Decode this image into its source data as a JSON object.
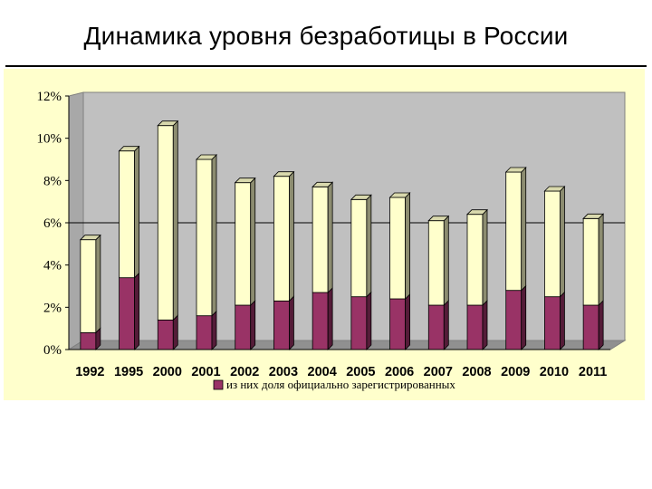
{
  "slide": {
    "title": "Динамика уровня безработицы в России"
  },
  "chart_data": {
    "type": "bar",
    "stacked": true,
    "three_d": true,
    "categories": [
      "1992",
      "1995",
      "2000",
      "2001",
      "2002",
      "2003",
      "2004",
      "2005",
      "2006",
      "2007",
      "2008",
      "2009",
      "2010",
      "2011"
    ],
    "series": [
      {
        "name": "из них доля официально зарегистрированных",
        "values": [
          0.8,
          3.4,
          1.4,
          1.6,
          2.1,
          2.3,
          2.7,
          2.5,
          2.4,
          2.1,
          2.1,
          2.8,
          2.5,
          2.1
        ],
        "color": "#993366"
      },
      {
        "name": "",
        "values": [
          4.4,
          6.0,
          9.2,
          7.4,
          5.8,
          5.9,
          5.0,
          4.6,
          4.8,
          4.0,
          4.3,
          5.6,
          5.0,
          4.1
        ],
        "color": "#FFFFCC"
      }
    ],
    "ylim": [
      0,
      12
    ],
    "yticks": [
      "0%",
      "2%",
      "4%",
      "6%",
      "8%",
      "10%",
      "12%"
    ],
    "reference_line": 6,
    "grid": false,
    "legend": {
      "position": "bottom",
      "entries": [
        "из них доля официально зарегистрированных"
      ]
    },
    "plot_background": "#C0C0C0",
    "panel_background": "#FFFFCC"
  }
}
